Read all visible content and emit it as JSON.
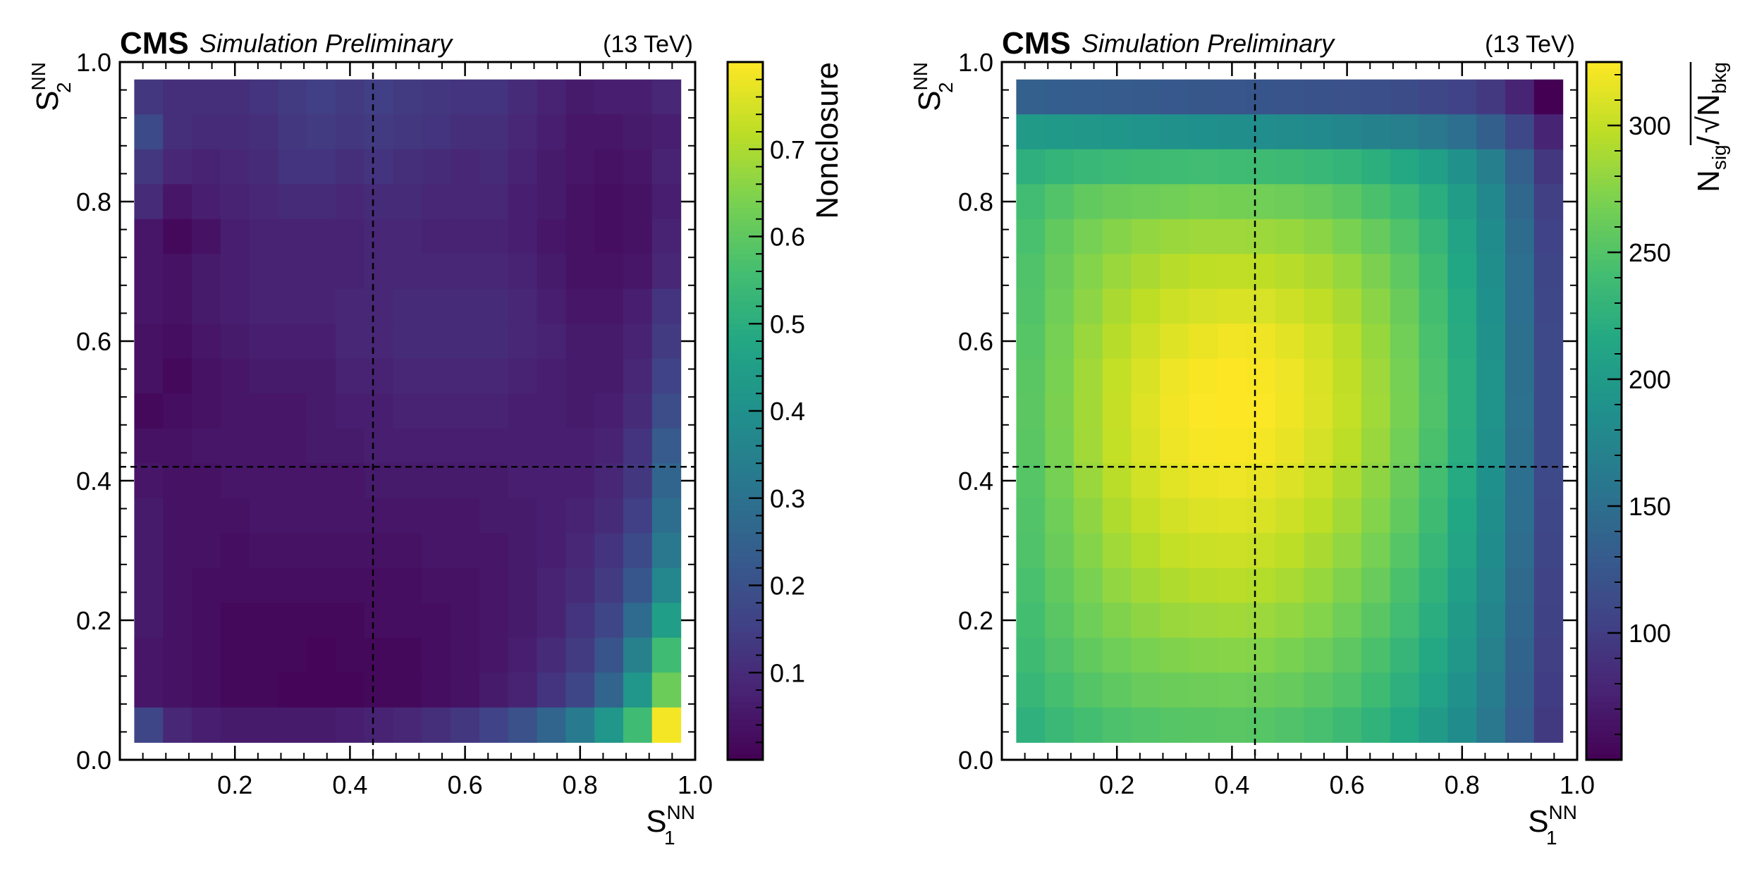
{
  "panels": [
    {
      "cms_label": "CMS",
      "sim_label": "Simulation Preliminary",
      "energy_label": "(13 TeV)",
      "x_axis_title": {
        "main": "S",
        "sup": "NN",
        "sub": "1"
      },
      "y_axis_title": {
        "main": "S",
        "sup": "NN",
        "sub": "2"
      },
      "colorbar_label": "Nonclosure",
      "colorbar_label_parts": null,
      "chart_data": {
        "type": "heatmap",
        "colormap": "viridis",
        "x_range": [
          0.0,
          1.0
        ],
        "y_range": [
          0.0,
          1.0
        ],
        "cell_extent": {
          "x": [
            0.025,
            0.975
          ],
          "y": [
            0.025,
            0.975
          ]
        },
        "nx": 19,
        "ny": 19,
        "x_ticks": [
          0.2,
          0.4,
          0.6,
          0.8,
          1.0
        ],
        "x_tick_labels": [
          "0.2",
          "0.4",
          "0.6",
          "0.8",
          "1.0"
        ],
        "y_ticks": [
          0.0,
          0.2,
          0.4,
          0.6,
          0.8,
          1.0
        ],
        "y_tick_labels": [
          "0.0",
          "0.2",
          "0.4",
          "0.6",
          "0.8",
          "1.0"
        ],
        "colorbar_range": [
          0.0,
          0.8
        ],
        "colorbar_ticks": [
          0.1,
          0.2,
          0.3,
          0.4,
          0.5,
          0.6,
          0.7
        ],
        "colorbar_tick_labels": [
          "0.1",
          "0.2",
          "0.3",
          "0.4",
          "0.5",
          "0.6",
          "0.7"
        ],
        "vline_x": 0.44,
        "hline_y": 0.42,
        "grid": false,
        "values_rows_top_to_bottom": [
          [
            0.13,
            0.11,
            0.11,
            0.11,
            0.12,
            0.14,
            0.15,
            0.14,
            0.15,
            0.14,
            0.13,
            0.12,
            0.12,
            0.1,
            0.08,
            0.06,
            0.07,
            0.07,
            0.09
          ],
          [
            0.18,
            0.11,
            0.1,
            0.1,
            0.11,
            0.13,
            0.14,
            0.13,
            0.14,
            0.13,
            0.12,
            0.11,
            0.11,
            0.09,
            0.07,
            0.05,
            0.05,
            0.06,
            0.07
          ],
          [
            0.13,
            0.09,
            0.08,
            0.09,
            0.1,
            0.12,
            0.12,
            0.11,
            0.12,
            0.11,
            0.1,
            0.09,
            0.1,
            0.08,
            0.06,
            0.05,
            0.04,
            0.05,
            0.08
          ],
          [
            0.1,
            0.05,
            0.07,
            0.08,
            0.09,
            0.1,
            0.1,
            0.09,
            0.1,
            0.1,
            0.09,
            0.09,
            0.09,
            0.07,
            0.06,
            0.04,
            0.03,
            0.04,
            0.07
          ],
          [
            0.05,
            0.02,
            0.04,
            0.07,
            0.08,
            0.08,
            0.08,
            0.08,
            0.09,
            0.09,
            0.08,
            0.08,
            0.08,
            0.07,
            0.05,
            0.04,
            0.03,
            0.04,
            0.08
          ],
          [
            0.05,
            0.04,
            0.06,
            0.07,
            0.08,
            0.08,
            0.08,
            0.08,
            0.09,
            0.09,
            0.09,
            0.09,
            0.09,
            0.08,
            0.06,
            0.04,
            0.04,
            0.05,
            0.09
          ],
          [
            0.05,
            0.04,
            0.06,
            0.07,
            0.08,
            0.08,
            0.08,
            0.09,
            0.09,
            0.1,
            0.1,
            0.1,
            0.1,
            0.09,
            0.07,
            0.05,
            0.05,
            0.07,
            0.12
          ],
          [
            0.04,
            0.03,
            0.05,
            0.06,
            0.07,
            0.07,
            0.07,
            0.09,
            0.09,
            0.1,
            0.1,
            0.1,
            0.1,
            0.09,
            0.08,
            0.06,
            0.06,
            0.08,
            0.14
          ],
          [
            0.04,
            0.02,
            0.04,
            0.05,
            0.06,
            0.06,
            0.06,
            0.08,
            0.08,
            0.09,
            0.09,
            0.09,
            0.09,
            0.08,
            0.07,
            0.06,
            0.06,
            0.09,
            0.16
          ],
          [
            0.02,
            0.03,
            0.04,
            0.05,
            0.05,
            0.05,
            0.06,
            0.07,
            0.07,
            0.08,
            0.08,
            0.08,
            0.08,
            0.07,
            0.07,
            0.06,
            0.07,
            0.1,
            0.19
          ],
          [
            0.04,
            0.04,
            0.05,
            0.05,
            0.05,
            0.05,
            0.06,
            0.06,
            0.07,
            0.07,
            0.07,
            0.07,
            0.07,
            0.07,
            0.07,
            0.07,
            0.08,
            0.12,
            0.23
          ],
          [
            0.05,
            0.04,
            0.04,
            0.05,
            0.05,
            0.05,
            0.05,
            0.05,
            0.06,
            0.06,
            0.06,
            0.06,
            0.06,
            0.07,
            0.07,
            0.07,
            0.09,
            0.13,
            0.26
          ],
          [
            0.06,
            0.04,
            0.04,
            0.04,
            0.05,
            0.05,
            0.05,
            0.05,
            0.05,
            0.05,
            0.05,
            0.05,
            0.06,
            0.06,
            0.07,
            0.08,
            0.1,
            0.15,
            0.29
          ],
          [
            0.06,
            0.04,
            0.04,
            0.03,
            0.04,
            0.04,
            0.04,
            0.04,
            0.04,
            0.04,
            0.05,
            0.05,
            0.05,
            0.06,
            0.07,
            0.09,
            0.12,
            0.18,
            0.32
          ],
          [
            0.06,
            0.04,
            0.03,
            0.03,
            0.03,
            0.03,
            0.03,
            0.03,
            0.03,
            0.03,
            0.04,
            0.04,
            0.05,
            0.06,
            0.08,
            0.1,
            0.14,
            0.22,
            0.37
          ],
          [
            0.06,
            0.04,
            0.03,
            0.02,
            0.02,
            0.02,
            0.02,
            0.02,
            0.03,
            0.03,
            0.03,
            0.04,
            0.05,
            0.06,
            0.08,
            0.12,
            0.17,
            0.28,
            0.45
          ],
          [
            0.05,
            0.04,
            0.03,
            0.02,
            0.02,
            0.02,
            0.01,
            0.02,
            0.02,
            0.02,
            0.03,
            0.04,
            0.05,
            0.07,
            0.1,
            0.14,
            0.21,
            0.35,
            0.55
          ],
          [
            0.05,
            0.04,
            0.03,
            0.02,
            0.02,
            0.01,
            0.01,
            0.01,
            0.02,
            0.02,
            0.03,
            0.04,
            0.06,
            0.08,
            0.12,
            0.17,
            0.26,
            0.42,
            0.62
          ],
          [
            0.17,
            0.09,
            0.07,
            0.06,
            0.06,
            0.06,
            0.06,
            0.07,
            0.08,
            0.09,
            0.11,
            0.13,
            0.16,
            0.2,
            0.26,
            0.33,
            0.42,
            0.55,
            0.79
          ]
        ]
      }
    },
    {
      "cms_label": "CMS",
      "sim_label": "Simulation Preliminary",
      "energy_label": "(13 TeV)",
      "x_axis_title": {
        "main": "S",
        "sup": "NN",
        "sub": "1"
      },
      "y_axis_title": {
        "main": "S",
        "sup": "NN",
        "sub": "2"
      },
      "colorbar_label": "",
      "colorbar_label_parts": {
        "num": "N",
        "num_sub": "sig",
        "slash": "/",
        "den": "N",
        "den_sub": "bkg"
      },
      "chart_data": {
        "type": "heatmap",
        "colormap": "viridis",
        "x_range": [
          0.0,
          1.0
        ],
        "y_range": [
          0.0,
          1.0
        ],
        "cell_extent": {
          "x": [
            0.025,
            0.975
          ],
          "y": [
            0.025,
            0.975
          ]
        },
        "nx": 19,
        "ny": 19,
        "x_ticks": [
          0.2,
          0.4,
          0.6,
          0.8,
          1.0
        ],
        "x_tick_labels": [
          "0.2",
          "0.4",
          "0.6",
          "0.8",
          "1.0"
        ],
        "y_ticks": [
          0.0,
          0.2,
          0.4,
          0.6,
          0.8,
          1.0
        ],
        "y_tick_labels": [
          "0.0",
          "0.2",
          "0.4",
          "0.6",
          "0.8",
          "1.0"
        ],
        "colorbar_range": [
          50,
          325
        ],
        "colorbar_ticks": [
          100,
          150,
          200,
          250,
          300
        ],
        "colorbar_tick_labels": [
          "100",
          "150",
          "200",
          "250",
          "300"
        ],
        "vline_x": 0.44,
        "hline_y": 0.42,
        "grid": false,
        "values_rows_top_to_bottom": [
          [
            135,
            132,
            131,
            130,
            128,
            126,
            125,
            124,
            123,
            122,
            121,
            119,
            117,
            114,
            110,
            105,
            96,
            78,
            50
          ],
          [
            200,
            198,
            196,
            194,
            192,
            190,
            188,
            186,
            184,
            182,
            180,
            176,
            172,
            167,
            160,
            150,
            134,
            110,
            78
          ],
          [
            225,
            230,
            234,
            236,
            238,
            239,
            240,
            239,
            238,
            237,
            234,
            230,
            224,
            216,
            205,
            190,
            168,
            135,
            95
          ],
          [
            240,
            250,
            258,
            262,
            264,
            266,
            268,
            267,
            266,
            264,
            260,
            254,
            246,
            236,
            222,
            203,
            178,
            143,
            102
          ],
          [
            245,
            258,
            268,
            275,
            280,
            283,
            285,
            285,
            284,
            282,
            277,
            270,
            260,
            248,
            232,
            210,
            183,
            147,
            105
          ],
          [
            248,
            262,
            274,
            283,
            290,
            295,
            298,
            299,
            298,
            295,
            290,
            282,
            271,
            257,
            238,
            215,
            186,
            150,
            108
          ],
          [
            250,
            265,
            278,
            290,
            298,
            304,
            308,
            310,
            309,
            305,
            299,
            290,
            277,
            262,
            242,
            218,
            188,
            151,
            110
          ],
          [
            252,
            268,
            283,
            295,
            305,
            312,
            317,
            320,
            319,
            314,
            306,
            296,
            282,
            266,
            245,
            220,
            190,
            152,
            111
          ],
          [
            254,
            270,
            286,
            300,
            310,
            318,
            323,
            325,
            323,
            318,
            310,
            299,
            285,
            268,
            247,
            222,
            191,
            152,
            112
          ],
          [
            255,
            271,
            287,
            301,
            312,
            320,
            324,
            326,
            324,
            319,
            311,
            300,
            286,
            269,
            248,
            222,
            191,
            153,
            112
          ],
          [
            254,
            270,
            286,
            300,
            310,
            318,
            322,
            323,
            321,
            316,
            308,
            297,
            283,
            266,
            246,
            221,
            190,
            152,
            112
          ],
          [
            252,
            268,
            283,
            296,
            306,
            313,
            317,
            318,
            316,
            311,
            303,
            292,
            279,
            262,
            242,
            218,
            188,
            151,
            111
          ],
          [
            250,
            265,
            279,
            292,
            301,
            307,
            311,
            312,
            310,
            305,
            297,
            287,
            274,
            258,
            238,
            215,
            186,
            150,
            110
          ],
          [
            248,
            262,
            275,
            286,
            294,
            300,
            303,
            304,
            302,
            297,
            290,
            280,
            268,
            252,
            233,
            211,
            183,
            148,
            108
          ],
          [
            245,
            258,
            270,
            280,
            287,
            292,
            295,
            296,
            294,
            289,
            282,
            273,
            261,
            246,
            228,
            206,
            179,
            145,
            106
          ],
          [
            242,
            254,
            265,
            273,
            279,
            283,
            285,
            286,
            284,
            280,
            274,
            265,
            254,
            240,
            222,
            201,
            175,
            142,
            104
          ],
          [
            238,
            249,
            258,
            265,
            270,
            273,
            275,
            276,
            274,
            270,
            264,
            256,
            246,
            232,
            216,
            196,
            170,
            139,
            102
          ],
          [
            233,
            243,
            251,
            257,
            261,
            263,
            264,
            265,
            263,
            260,
            255,
            248,
            238,
            225,
            209,
            190,
            166,
            136,
            100
          ],
          [
            226,
            235,
            242,
            247,
            250,
            252,
            253,
            254,
            252,
            249,
            244,
            237,
            228,
            216,
            201,
            183,
            160,
            131,
            97
          ]
        ]
      }
    }
  ]
}
